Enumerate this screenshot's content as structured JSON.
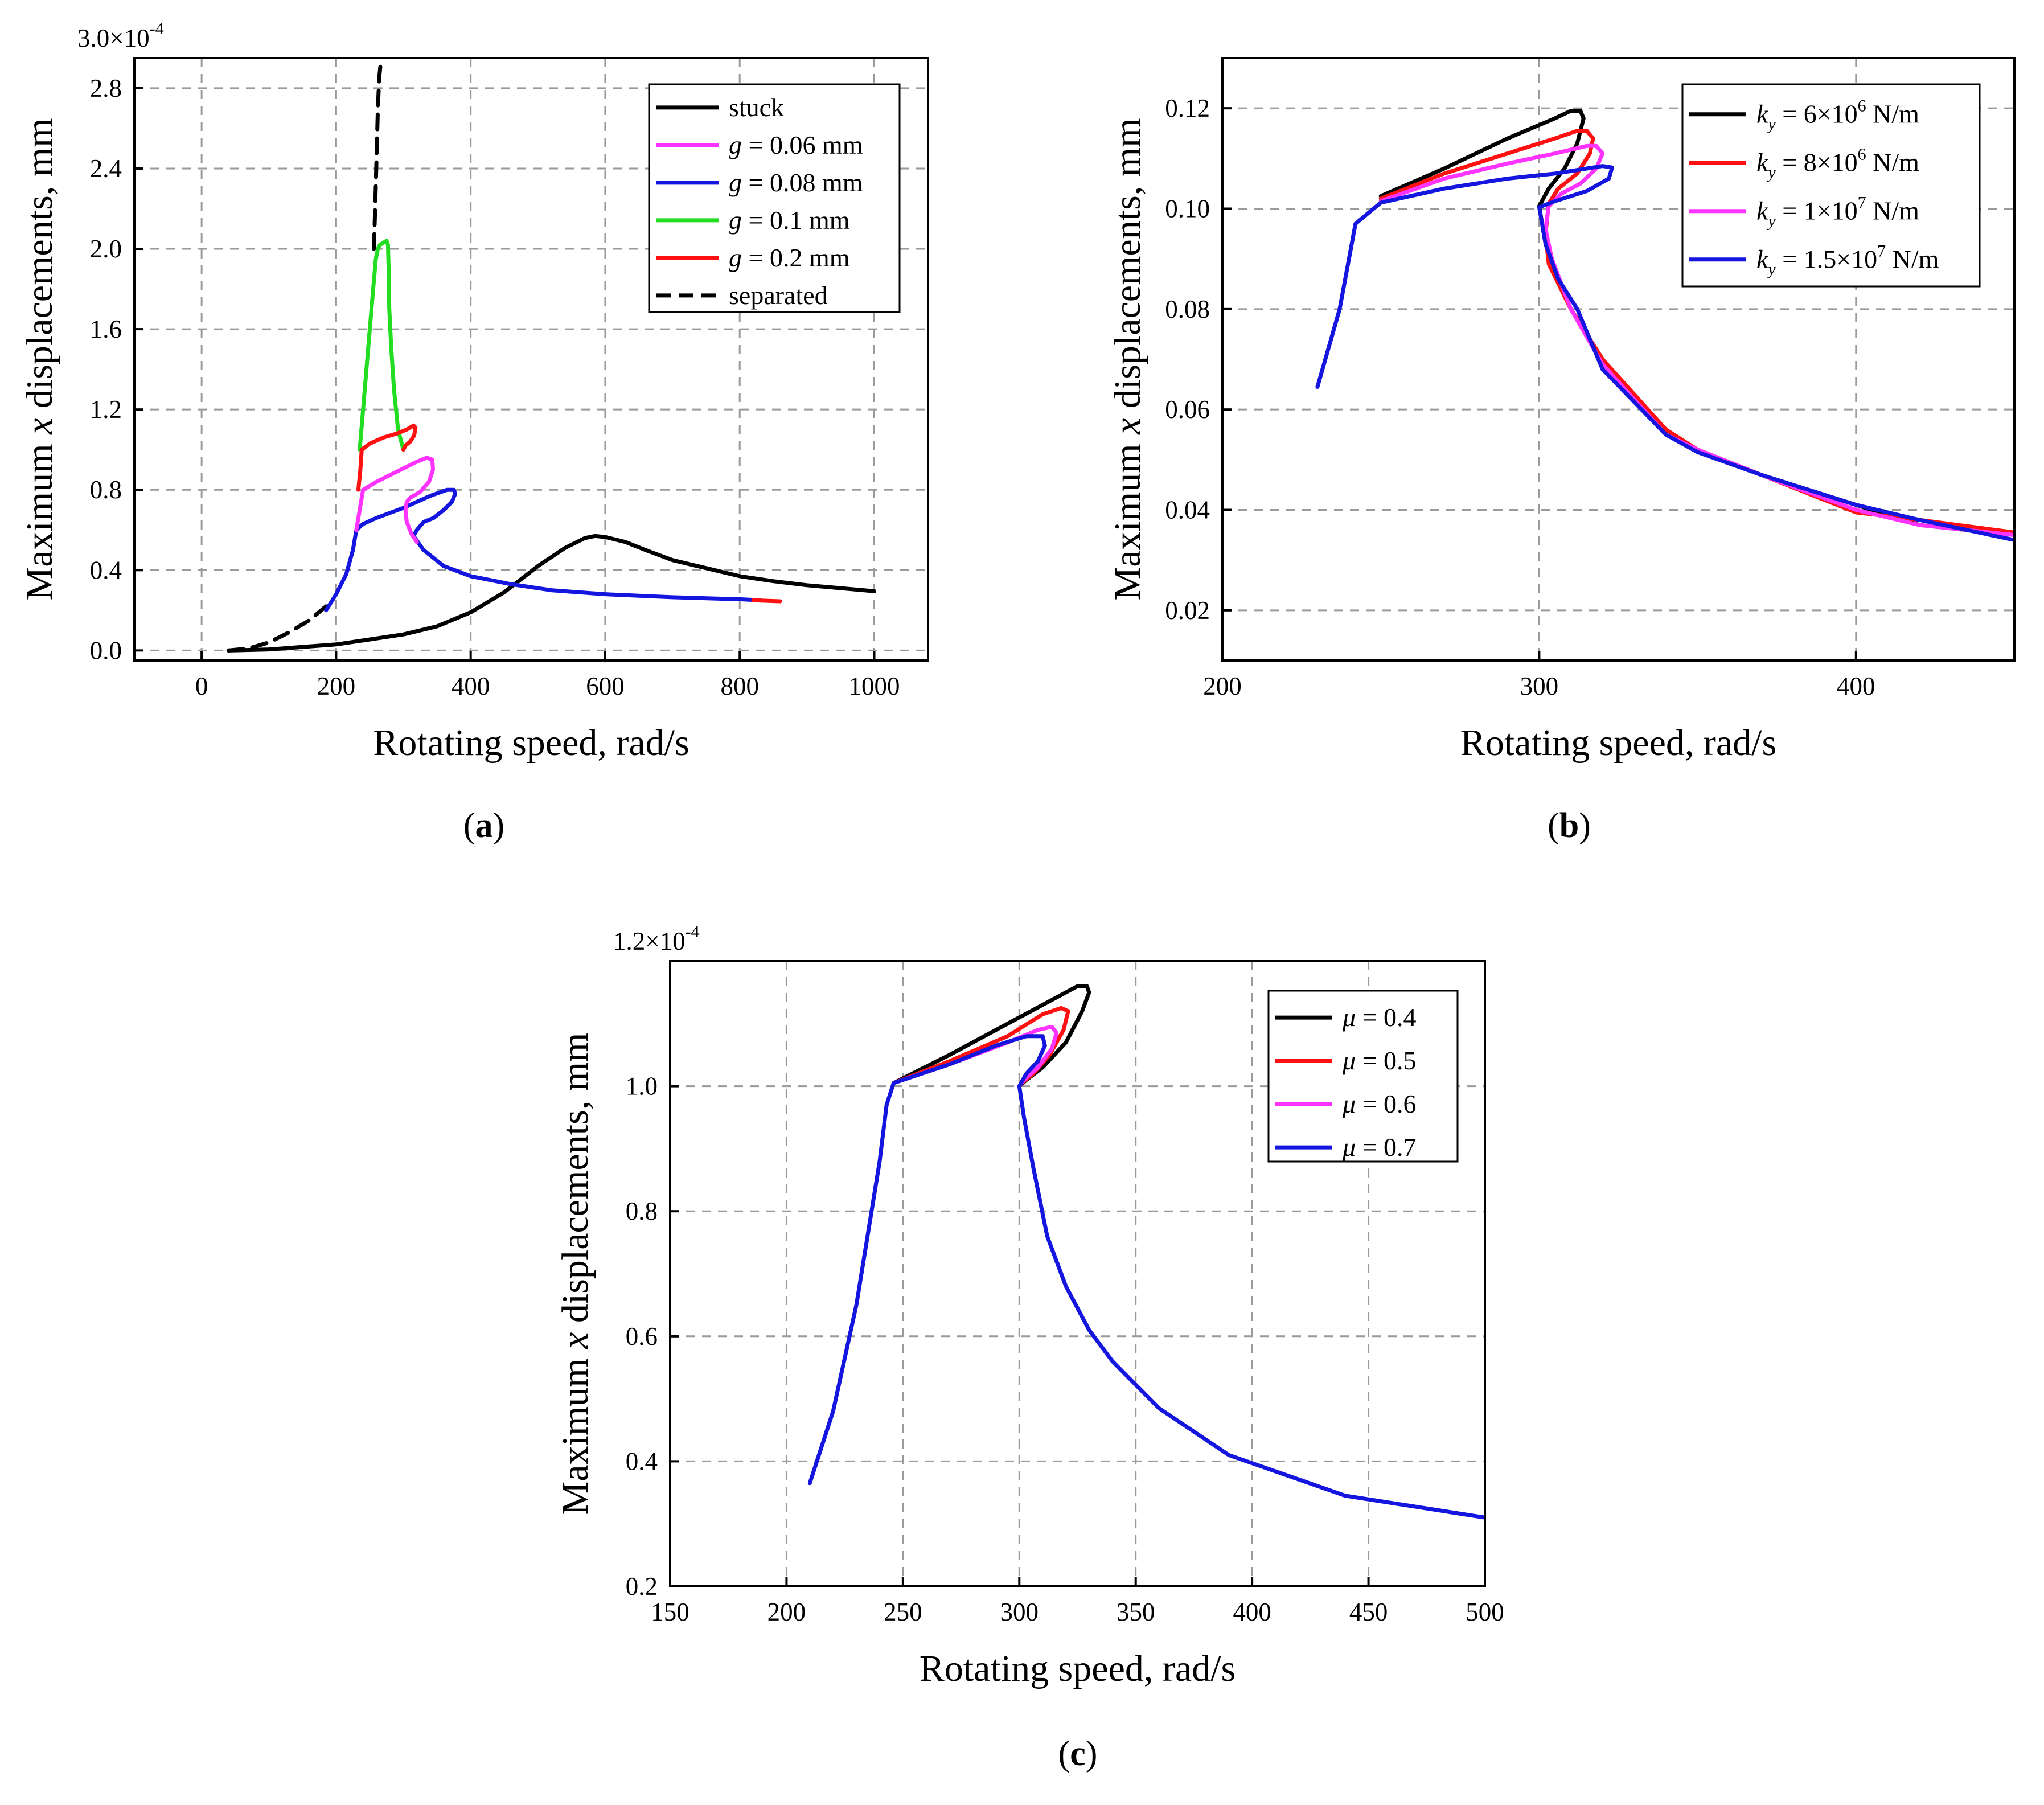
{
  "figure": {
    "panel_labels": [
      "(a)",
      "(b)",
      "(c)"
    ]
  },
  "chart_data": [
    {
      "id": "a",
      "type": "line",
      "panel_label": "(a)",
      "xlabel": "Rotating speed, rad/s",
      "ylabel_parts": [
        "Maximum ",
        "x",
        " displacements, mm"
      ],
      "y_multiplier_text": "3.0×10",
      "y_multiplier_exp": "-4",
      "xlim": [
        -100,
        1080
      ],
      "ylim": [
        -0.05,
        2.95
      ],
      "xticks": [
        0,
        200,
        400,
        600,
        800,
        1000
      ],
      "xtick_labels": [
        "0",
        "200",
        "400",
        "600",
        "800",
        "1000"
      ],
      "yticks": [
        0.0,
        0.4,
        0.8,
        1.2,
        1.6,
        2.0,
        2.4,
        2.8
      ],
      "ytick_labels": [
        "0.0",
        "0.4",
        "0.8",
        "1.2",
        "1.6",
        "2.0",
        "2.4",
        "2.8"
      ],
      "grid": true,
      "legend_position": "top-right",
      "legend": [
        {
          "pre": "stuck",
          "var": "",
          "post": "",
          "color": "#000000",
          "dash": false
        },
        {
          "pre": "",
          "var": "g",
          "post": " = 0.06 mm",
          "color": "#ff33ff",
          "dash": false
        },
        {
          "pre": "",
          "var": "g",
          "post": " = 0.08 mm",
          "color": "#1515e0",
          "dash": false
        },
        {
          "pre": "",
          "var": "g",
          "post": " = 0.1 mm",
          "color": "#22dd22",
          "dash": false
        },
        {
          "pre": "",
          "var": "g",
          "post": " = 0.2 mm",
          "color": "#ff1111",
          "dash": false
        },
        {
          "pre": "separated",
          "var": "",
          "post": "",
          "color": "#000000",
          "dash": true
        }
      ],
      "series": [
        {
          "name": "separated",
          "color": "#000000",
          "dash": true,
          "x": [
            40,
            70,
            100,
            130,
            160,
            185
          ],
          "y": [
            0.0,
            0.01,
            0.04,
            0.09,
            0.15,
            0.22
          ]
        },
        {
          "name": "separated",
          "color": "#000000",
          "dash": true,
          "x": [
            256,
            258,
            260,
            262,
            264,
            266
          ],
          "y": [
            2.0,
            2.2,
            2.45,
            2.7,
            2.85,
            2.92
          ]
        },
        {
          "name": "stuck",
          "color": "#000000",
          "dash": false,
          "x": [
            40,
            100,
            200,
            300,
            350,
            400,
            450,
            500,
            540,
            570,
            585,
            600,
            630,
            660,
            700,
            750,
            800,
            850,
            900,
            950,
            1000
          ],
          "y": [
            0.0,
            0.005,
            0.03,
            0.08,
            0.12,
            0.19,
            0.29,
            0.42,
            0.51,
            0.56,
            0.57,
            0.565,
            0.54,
            0.5,
            0.45,
            0.41,
            0.37,
            0.345,
            0.325,
            0.31,
            0.295
          ]
        },
        {
          "name": "g = 0.08 mm",
          "color": "#1515e0",
          "dash": false,
          "x": [
            185,
            200,
            215,
            225,
            230,
            240,
            260,
            300,
            340,
            365,
            375,
            377,
            372,
            360,
            345,
            330,
            320,
            315,
            330,
            360,
            400,
            460,
            520,
            600,
            700,
            800,
            830
          ],
          "y": [
            0.2,
            0.28,
            0.38,
            0.5,
            0.6,
            0.63,
            0.66,
            0.71,
            0.77,
            0.8,
            0.8,
            0.78,
            0.74,
            0.7,
            0.66,
            0.64,
            0.6,
            0.57,
            0.5,
            0.42,
            0.37,
            0.33,
            0.3,
            0.28,
            0.265,
            0.255,
            0.25
          ]
        },
        {
          "name": "g = 0.06 mm",
          "color": "#ff33ff",
          "dash": false,
          "x": [
            230,
            240,
            260,
            290,
            320,
            335,
            343,
            344,
            338,
            325,
            310,
            305,
            303,
            305,
            312,
            320
          ],
          "y": [
            0.6,
            0.8,
            0.84,
            0.89,
            0.94,
            0.96,
            0.95,
            0.9,
            0.84,
            0.79,
            0.76,
            0.74,
            0.7,
            0.64,
            0.58,
            0.54
          ]
        },
        {
          "name": "g = 0.1 mm",
          "color": "#22dd22",
          "dash": false,
          "x": [
            235,
            240,
            245,
            250,
            255,
            259,
            262,
            265,
            270,
            275,
            277,
            278,
            279,
            282,
            286,
            292,
            300
          ],
          "y": [
            1.0,
            1.2,
            1.4,
            1.6,
            1.8,
            1.95,
            2.0,
            2.02,
            2.03,
            2.04,
            2.02,
            1.9,
            1.7,
            1.5,
            1.3,
            1.1,
            1.0
          ]
        },
        {
          "name": "g = 0.2 mm",
          "color": "#ff1111",
          "dash": false,
          "x": [
            233,
            236,
            238,
            250,
            270,
            290,
            305,
            315,
            318,
            316,
            310,
            303,
            300
          ],
          "y": [
            0.8,
            0.9,
            1.0,
            1.03,
            1.06,
            1.08,
            1.1,
            1.12,
            1.11,
            1.07,
            1.04,
            1.02,
            1.0
          ]
        },
        {
          "name": "g = 0.2 mm",
          "color": "#ff1111",
          "dash": false,
          "x": [
            820,
            860
          ],
          "y": [
            0.25,
            0.245
          ]
        }
      ]
    },
    {
      "id": "b",
      "type": "line",
      "panel_label": "(b)",
      "xlabel": "Rotating speed, rad/s",
      "ylabel_parts": [
        "Maximum ",
        "x",
        " displacements, mm"
      ],
      "xlim": [
        200,
        450
      ],
      "ylim": [
        0.01,
        0.13
      ],
      "xticks": [
        200,
        300,
        400
      ],
      "xtick_labels": [
        "200",
        "300",
        "400"
      ],
      "yticks": [
        0.02,
        0.04,
        0.06,
        0.08,
        0.1,
        0.12
      ],
      "ytick_labels": [
        "0.02",
        "0.04",
        "0.06",
        "0.08",
        "0.10",
        "0.12"
      ],
      "grid": true,
      "legend_position": "top-right",
      "legend": [
        {
          "pre": "",
          "var": "k",
          "sub": "y",
          "post": " = 6×10",
          "exp": "6",
          "post2": " N/m",
          "color": "#000000"
        },
        {
          "pre": "",
          "var": "k",
          "sub": "y",
          "post": " = 8×10",
          "exp": "6",
          "post2": " N/m",
          "color": "#ff1111"
        },
        {
          "pre": "",
          "var": "k",
          "sub": "y",
          "post": " = 1×10",
          "exp": "7",
          "post2": " N/m",
          "color": "#ff33ff"
        },
        {
          "pre": "",
          "var": "k",
          "sub": "y",
          "post": " = 1.5×10",
          "exp": "7",
          "post2": " N/m",
          "color": "#1515e0"
        }
      ],
      "series": [
        {
          "name": "k_y = 6×10^6 N/m",
          "color": "#000000",
          "x": [
            250,
            270,
            290,
            305,
            310,
            313,
            314,
            312,
            308,
            303,
            300,
            302,
            305,
            310,
            320,
            340,
            350,
            370,
            400,
            420,
            450
          ],
          "y": [
            0.1025,
            0.108,
            0.114,
            0.118,
            0.1195,
            0.1195,
            0.118,
            0.113,
            0.108,
            0.104,
            0.1005,
            0.093,
            0.087,
            0.08,
            0.07,
            0.055,
            0.052,
            0.047,
            0.041,
            0.037,
            0.035
          ]
        },
        {
          "name": "k_y = 8×10^6 N/m",
          "color": "#ff1111",
          "x": [
            250,
            270,
            290,
            305,
            312,
            315,
            317,
            316,
            312,
            306,
            303,
            302,
            303,
            310,
            320,
            340,
            350,
            370,
            400,
            420,
            450
          ],
          "y": [
            0.102,
            0.107,
            0.111,
            0.114,
            0.1155,
            0.1155,
            0.114,
            0.111,
            0.107,
            0.104,
            0.101,
            0.095,
            0.089,
            0.08,
            0.07,
            0.056,
            0.052,
            0.047,
            0.0395,
            0.038,
            0.0355
          ]
        },
        {
          "name": "k_y = 1×10^7 N/m",
          "color": "#ff33ff",
          "x": [
            250,
            270,
            290,
            305,
            315,
            318,
            320,
            318,
            313,
            307,
            303,
            302,
            304,
            310,
            320,
            340,
            350,
            370,
            400,
            420,
            450
          ],
          "y": [
            0.1015,
            0.106,
            0.109,
            0.111,
            0.1125,
            0.1125,
            0.111,
            0.108,
            0.105,
            0.103,
            0.1005,
            0.096,
            0.09,
            0.08,
            0.069,
            0.055,
            0.052,
            0.047,
            0.04,
            0.037,
            0.035
          ]
        },
        {
          "name": "k_y = 1.5×10^7 N/m",
          "color": "#1515e0",
          "x": [
            230,
            237,
            242,
            250,
            270,
            290,
            305,
            315,
            320,
            323,
            322,
            315,
            305,
            300,
            302,
            306,
            312,
            320,
            340,
            350,
            370,
            400,
            420,
            450
          ],
          "y": [
            0.0645,
            0.08,
            0.097,
            0.1012,
            0.104,
            0.106,
            0.107,
            0.108,
            0.1085,
            0.1082,
            0.106,
            0.1035,
            0.1015,
            0.1003,
            0.093,
            0.086,
            0.08,
            0.068,
            0.055,
            0.0515,
            0.047,
            0.041,
            0.038,
            0.034
          ]
        }
      ]
    },
    {
      "id": "c",
      "type": "line",
      "panel_label": "(c)",
      "xlabel": "Rotating speed, rad/s",
      "ylabel_parts": [
        "Maximum ",
        "x",
        " displacements, mm"
      ],
      "y_multiplier_text": "1.2×10",
      "y_multiplier_exp": "-4",
      "xlim": [
        150,
        500
      ],
      "ylim": [
        0.2,
        1.2
      ],
      "xticks": [
        150,
        200,
        250,
        300,
        350,
        400,
        450,
        500
      ],
      "xtick_labels": [
        "150",
        "200",
        "250",
        "300",
        "350",
        "400",
        "450",
        "500"
      ],
      "yticks": [
        0.2,
        0.4,
        0.6,
        0.8,
        1.0
      ],
      "ytick_labels": [
        "0.2",
        "0.4",
        "0.6",
        "0.8",
        "1.0"
      ],
      "grid": true,
      "legend_position": "top-right",
      "legend": [
        {
          "pre": "",
          "var": "μ",
          "post": " = 0.4",
          "color": "#000000"
        },
        {
          "pre": "",
          "var": "μ",
          "post": " = 0.5",
          "color": "#ff1111"
        },
        {
          "pre": "",
          "var": "μ",
          "post": " = 0.6",
          "color": "#ff33ff"
        },
        {
          "pre": "",
          "var": "μ",
          "post": " = 0.7",
          "color": "#1515e0"
        }
      ],
      "series": [
        {
          "name": "μ = 0.4",
          "color": "#000000",
          "x": [
            246,
            270,
            295,
            315,
            325,
            329,
            330,
            327,
            320,
            310,
            303,
            300
          ],
          "y": [
            1.005,
            1.05,
            1.1,
            1.14,
            1.16,
            1.16,
            1.15,
            1.12,
            1.07,
            1.03,
            1.01,
            1.0
          ]
        },
        {
          "name": "μ = 0.5",
          "color": "#ff1111",
          "x": [
            246,
            270,
            295,
            310,
            318,
            321,
            319,
            313,
            306,
            301,
            300
          ],
          "y": [
            1.005,
            1.04,
            1.08,
            1.115,
            1.125,
            1.12,
            1.09,
            1.05,
            1.02,
            1.005,
            1.0
          ]
        },
        {
          "name": "μ = 0.6",
          "color": "#ff33ff",
          "x": [
            246,
            270,
            295,
            308,
            314,
            316,
            314,
            308,
            302,
            300
          ],
          "y": [
            1.005,
            1.035,
            1.07,
            1.09,
            1.095,
            1.085,
            1.06,
            1.03,
            1.01,
            1.0
          ]
        },
        {
          "name": "μ = 0.7",
          "color": "#1515e0",
          "x": [
            210,
            220,
            230,
            240,
            243,
            246,
            270,
            290,
            303,
            310,
            311,
            308,
            303,
            300,
            302,
            306,
            312,
            320,
            330,
            340,
            360,
            390,
            440,
            500
          ],
          "y": [
            0.365,
            0.48,
            0.65,
            0.88,
            0.97,
            1.005,
            1.035,
            1.065,
            1.08,
            1.08,
            1.065,
            1.04,
            1.02,
            1.0,
            0.95,
            0.87,
            0.76,
            0.68,
            0.61,
            0.56,
            0.485,
            0.41,
            0.345,
            0.31
          ]
        }
      ]
    }
  ]
}
